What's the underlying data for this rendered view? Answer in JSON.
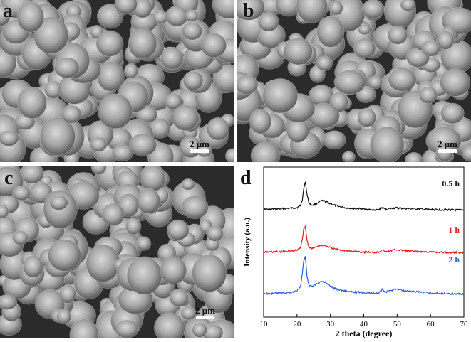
{
  "panels": {
    "a": {
      "label": "a",
      "scale": "2 μm"
    },
    "b": {
      "label": "b",
      "scale": "2 μm"
    },
    "c": {
      "label": "c",
      "scale": "2 μm"
    },
    "d": {
      "label": "d"
    }
  },
  "chart_data": {
    "type": "line",
    "xlabel": "2 theta (degree)",
    "ylabel": "Intensity (a.u.)",
    "xlim": [
      10,
      70
    ],
    "xticks": [
      10,
      20,
      30,
      40,
      50,
      60,
      70
    ],
    "y_ticks_shown": false,
    "legend": "inline labels at right end of each curve",
    "peak_positions": [
      22.5,
      28,
      45.5,
      49
    ],
    "series": [
      {
        "name": "0.5 h",
        "color": "#111111",
        "x": [
          10,
          14,
          18,
          20,
          21,
          21.6,
          22,
          22.5,
          23,
          23.6,
          24.5,
          25.5,
          26.5,
          27.5,
          28.5,
          29.5,
          31,
          33,
          35,
          38,
          41,
          43,
          44.5,
          45.5,
          46.5,
          48,
          49.5,
          51,
          53,
          56,
          59,
          62,
          65,
          68,
          70
        ],
        "y": [
          0.18,
          0.19,
          0.21,
          0.23,
          0.28,
          0.45,
          0.75,
          0.95,
          0.6,
          0.35,
          0.3,
          0.33,
          0.38,
          0.42,
          0.4,
          0.36,
          0.3,
          0.25,
          0.22,
          0.2,
          0.18,
          0.16,
          0.17,
          0.23,
          0.18,
          0.2,
          0.22,
          0.21,
          0.2,
          0.19,
          0.18,
          0.17,
          0.17,
          0.16,
          0.16
        ]
      },
      {
        "name": "1 h",
        "color": "#e01e1e",
        "x": [
          10,
          14,
          18,
          20,
          21,
          21.6,
          22,
          22.5,
          23,
          23.6,
          24.5,
          25.5,
          26.5,
          27.5,
          28.5,
          29.5,
          31,
          33,
          35,
          38,
          41,
          43,
          44.5,
          45.5,
          46.5,
          48,
          49.5,
          51,
          53,
          56,
          59,
          62,
          65,
          68,
          70
        ],
        "y": [
          0.18,
          0.19,
          0.21,
          0.24,
          0.32,
          0.6,
          0.9,
          1.0,
          0.55,
          0.32,
          0.3,
          0.33,
          0.38,
          0.4,
          0.38,
          0.34,
          0.29,
          0.25,
          0.22,
          0.2,
          0.18,
          0.17,
          0.18,
          0.26,
          0.19,
          0.22,
          0.26,
          0.24,
          0.22,
          0.2,
          0.19,
          0.18,
          0.17,
          0.17,
          0.16
        ]
      },
      {
        "name": "2 h",
        "color": "#2c5fd8",
        "x": [
          10,
          14,
          18,
          20,
          21,
          21.6,
          22,
          22.5,
          23,
          23.6,
          24.5,
          25.5,
          26.5,
          27.5,
          28.5,
          29.5,
          31,
          33,
          35,
          38,
          41,
          43,
          44.5,
          45.5,
          46.5,
          48,
          49.5,
          51,
          53,
          56,
          59,
          62,
          65,
          68,
          70
        ],
        "y": [
          0.18,
          0.19,
          0.21,
          0.24,
          0.32,
          0.62,
          0.9,
          1.0,
          0.55,
          0.35,
          0.33,
          0.38,
          0.42,
          0.45,
          0.42,
          0.37,
          0.3,
          0.26,
          0.23,
          0.21,
          0.2,
          0.19,
          0.2,
          0.27,
          0.21,
          0.25,
          0.28,
          0.26,
          0.24,
          0.22,
          0.2,
          0.19,
          0.18,
          0.18,
          0.17
        ]
      }
    ]
  }
}
